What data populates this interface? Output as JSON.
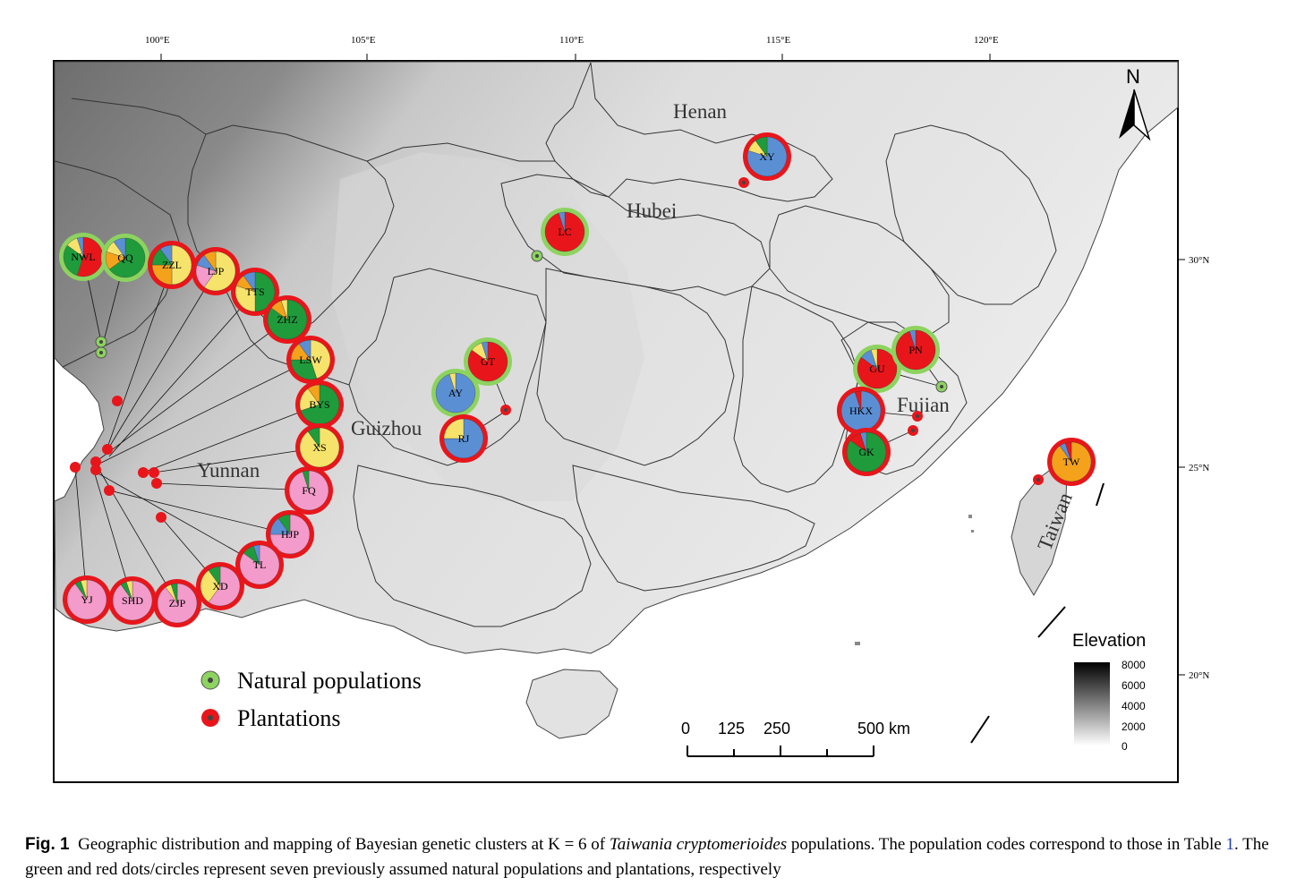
{
  "map": {
    "longitudes": [
      "100°E",
      "105°E",
      "110°E",
      "115°E",
      "120°E"
    ],
    "latitudes": [
      "30°N",
      "25°N",
      "20°N"
    ],
    "provinces": [
      "Henan",
      "Hubei",
      "Guizhou",
      "Yunnan",
      "Fujian",
      "Taiwan"
    ],
    "north_label": "N",
    "legend": {
      "natural": "Natural populations",
      "plantation": "Plantations"
    },
    "scale_bar": {
      "ticks": [
        "0",
        "125",
        "250",
        "500 km"
      ]
    },
    "elevation": {
      "title": "Elevation",
      "ticks": [
        "8000",
        "6000",
        "4000",
        "2000",
        "0"
      ]
    },
    "colors": {
      "natural_ring": "#8dd35f",
      "plantation_ring": "#e8161b",
      "cluster_red": "#e8161b",
      "cluster_blue": "#5b8fd4",
      "cluster_green": "#1f9b3c",
      "cluster_yellow": "#f6e36b",
      "cluster_orange": "#f4a21c",
      "cluster_pink": "#f39bcb"
    },
    "populations": [
      {
        "code": "NWL",
        "type": "natural",
        "pie": {
          "red": 0.55,
          "green": 0.3,
          "yellow": 0.1,
          "blue": 0.05
        }
      },
      {
        "code": "QQ",
        "type": "natural",
        "pie": {
          "green": 0.65,
          "orange": 0.15,
          "yellow": 0.1,
          "blue": 0.1
        }
      },
      {
        "code": "ZZL",
        "type": "plantation",
        "pie": {
          "yellow": 0.5,
          "orange": 0.25,
          "green": 0.15,
          "blue": 0.1
        }
      },
      {
        "code": "LJP",
        "type": "plantation",
        "pie": {
          "yellow": 0.6,
          "pink": 0.2,
          "blue": 0.1,
          "orange": 0.1
        }
      },
      {
        "code": "TTS",
        "type": "plantation",
        "pie": {
          "green": 0.5,
          "yellow": 0.3,
          "orange": 0.1,
          "blue": 0.1
        }
      },
      {
        "code": "ZHZ",
        "type": "plantation",
        "pie": {
          "green": 0.85,
          "orange": 0.1,
          "yellow": 0.05
        }
      },
      {
        "code": "LSW",
        "type": "plantation",
        "pie": {
          "yellow": 0.45,
          "green": 0.3,
          "orange": 0.15,
          "blue": 0.1
        }
      },
      {
        "code": "BYS",
        "type": "plantation",
        "pie": {
          "green": 0.7,
          "yellow": 0.2,
          "orange": 0.1
        }
      },
      {
        "code": "XS",
        "type": "plantation",
        "pie": {
          "yellow": 0.9,
          "green": 0.1
        }
      },
      {
        "code": "FQ",
        "type": "plantation",
        "pie": {
          "pink": 0.95,
          "green": 0.05
        }
      },
      {
        "code": "HJP",
        "type": "plantation",
        "pie": {
          "pink": 0.75,
          "blue": 0.15,
          "green": 0.1
        }
      },
      {
        "code": "TL",
        "type": "plantation",
        "pie": {
          "pink": 0.85,
          "green": 0.1,
          "blue": 0.05
        }
      },
      {
        "code": "XD",
        "type": "plantation",
        "pie": {
          "pink": 0.6,
          "yellow": 0.3,
          "green": 0.1
        }
      },
      {
        "code": "ZJP",
        "type": "plantation",
        "pie": {
          "pink": 0.9,
          "yellow": 0.05,
          "green": 0.05
        }
      },
      {
        "code": "SHD",
        "type": "plantation",
        "pie": {
          "pink": 0.9,
          "green": 0.05,
          "yellow": 0.05
        }
      },
      {
        "code": "YJ",
        "type": "plantation",
        "pie": {
          "pink": 0.9,
          "green": 0.05,
          "yellow": 0.05
        }
      },
      {
        "code": "LC",
        "type": "natural",
        "pie": {
          "red": 0.95,
          "blue": 0.05
        }
      },
      {
        "code": "GT",
        "type": "natural",
        "pie": {
          "red": 0.85,
          "yellow": 0.1,
          "blue": 0.05
        }
      },
      {
        "code": "AY",
        "type": "natural",
        "pie": {
          "blue": 0.95,
          "yellow": 0.05
        }
      },
      {
        "code": "RJ",
        "type": "plantation",
        "pie": {
          "blue": 0.75,
          "yellow": 0.25
        }
      },
      {
        "code": "XY",
        "type": "plantation",
        "pie": {
          "blue": 0.8,
          "yellow": 0.1,
          "green": 0.1
        }
      },
      {
        "code": "GU",
        "type": "natural",
        "pie": {
          "red": 0.85,
          "blue": 0.1,
          "yellow": 0.05
        }
      },
      {
        "code": "PN",
        "type": "natural",
        "pie": {
          "red": 0.95,
          "blue": 0.05
        }
      },
      {
        "code": "HKX",
        "type": "plantation",
        "pie": {
          "blue": 0.95,
          "red": 0.05
        }
      },
      {
        "code": "GK",
        "type": "plantation",
        "pie": {
          "green": 0.85,
          "red": 0.1,
          "blue": 0.05
        }
      },
      {
        "code": "TW",
        "type": "plantation",
        "pie": {
          "orange": 0.9,
          "blue": 0.05,
          "red": 0.05
        }
      }
    ]
  },
  "caption": {
    "fig_label": "Fig. 1",
    "text_a": "Geographic distribution and mapping of Bayesian genetic clusters at K = 6 of ",
    "species": "Taiwania cryptomerioides",
    "text_b": " populations. The population codes correspond to those in Table ",
    "table_ref": "1",
    "text_c": ". The green and red dots/circles represent seven previously assumed natural populations and plantations, respectively"
  }
}
